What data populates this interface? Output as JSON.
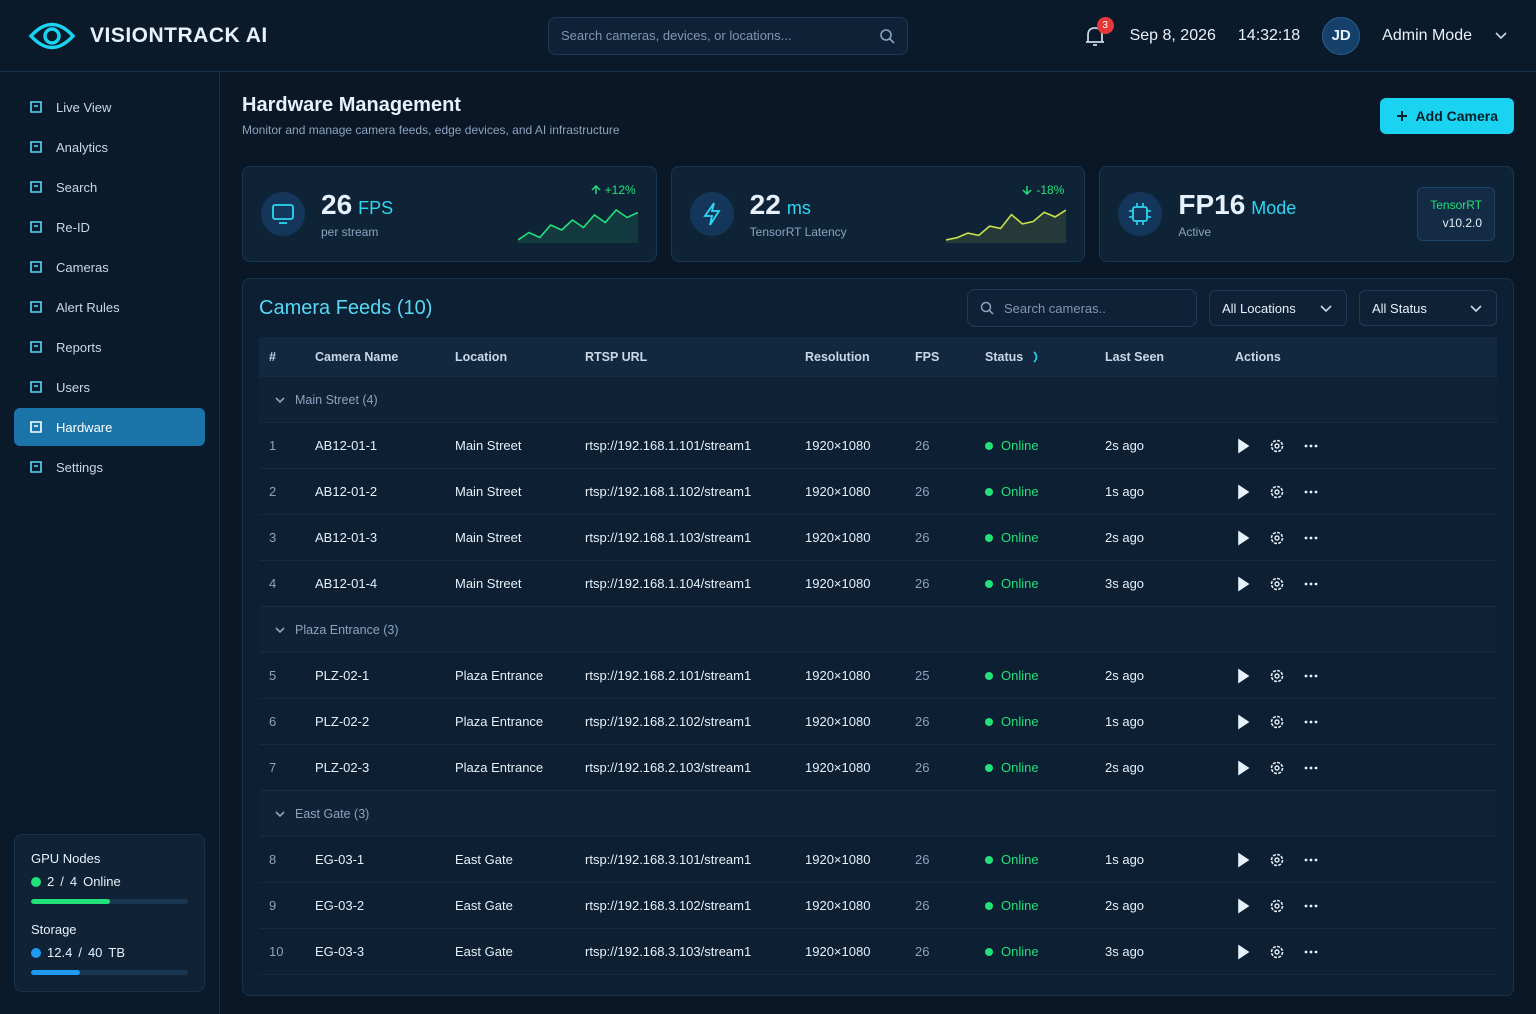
{
  "app": {
    "name": "VISIONTRACK AI",
    "search_placeholder": "Search cameras, devices, or locations...",
    "notification_count": 3,
    "date": "Sep 8, 2026",
    "time": "14:32:18",
    "user_initials": "JD",
    "user_mode": "Admin Mode"
  },
  "nav": {
    "items": [
      "Live View",
      "Analytics",
      "Search",
      "Re-ID",
      "Cameras",
      "Alert Rules",
      "Reports",
      "Users",
      "Hardware",
      "Settings"
    ],
    "active": "Hardware"
  },
  "sidebar_status": {
    "gpu": {
      "label": "GPU Nodes",
      "used": 2,
      "separator": "/",
      "total": 4,
      "status": "Online"
    },
    "storage": {
      "label": "Storage",
      "used": 12.4,
      "separator": "/",
      "total": 40,
      "unit": "TB"
    }
  },
  "header": {
    "title": "Hardware Management",
    "subtitle": "Monitor and manage camera feeds, edge devices, and AI infrastructure",
    "button": "Add Camera"
  },
  "stats": [
    {
      "value": 26,
      "unit": "FPS",
      "label": "per stream",
      "change": "+12%",
      "color": "#22e07a",
      "trend": [
        30,
        33,
        31,
        36,
        34,
        38,
        35,
        40,
        37,
        42,
        39,
        41
      ]
    },
    {
      "value": 22,
      "unit": "ms",
      "label": "TensorRT Latency",
      "change": "-18%",
      "color": "#c9e04a",
      "trend": [
        30,
        31,
        33,
        32,
        36,
        35,
        41,
        37,
        38,
        42,
        40,
        43
      ]
    },
    {
      "value": "FP16",
      "unit": "Mode",
      "label": "Active",
      "badge_name": "TensorRT",
      "badge_version": "v10.2.0"
    }
  ],
  "table": {
    "title": "Camera Feeds (10)",
    "search_placeholder": "Search cameras..",
    "filters": [
      "All Locations",
      "All Status"
    ],
    "columns": [
      "#",
      "Camera Name",
      "Location",
      "RTSP URL",
      "Resolution",
      "FPS",
      "Status",
      "Last Seen",
      "Actions"
    ],
    "groups": [
      {
        "name": "Main Street (4)",
        "rows": [
          [
            1,
            "AB12-01-1",
            "Main Street",
            "rtsp://192.168.1.101/stream1",
            "1920×1080",
            26,
            "Online",
            "2s ago"
          ],
          [
            2,
            "AB12-01-2",
            "Main Street",
            "rtsp://192.168.1.102/stream1",
            "1920×1080",
            26,
            "Online",
            "1s ago"
          ],
          [
            3,
            "AB12-01-3",
            "Main Street",
            "rtsp://192.168.1.103/stream1",
            "1920×1080",
            26,
            "Online",
            "2s ago"
          ],
          [
            4,
            "AB12-01-4",
            "Main Street",
            "rtsp://192.168.1.104/stream1",
            "1920×1080",
            26,
            "Online",
            "3s ago"
          ]
        ]
      },
      {
        "name": "Plaza Entrance (3)",
        "rows": [
          [
            5,
            "PLZ-02-1",
            "Plaza Entrance",
            "rtsp://192.168.2.101/stream1",
            "1920×1080",
            25,
            "Online",
            "2s ago"
          ],
          [
            6,
            "PLZ-02-2",
            "Plaza Entrance",
            "rtsp://192.168.2.102/stream1",
            "1920×1080",
            26,
            "Online",
            "1s ago"
          ],
          [
            7,
            "PLZ-02-3",
            "Plaza Entrance",
            "rtsp://192.168.2.103/stream1",
            "1920×1080",
            26,
            "Online",
            "2s ago"
          ]
        ]
      },
      {
        "name": "East Gate (3)",
        "rows": [
          [
            8,
            "EG-03-1",
            "East Gate",
            "rtsp://192.168.3.101/stream1",
            "1920×1080",
            26,
            "Online",
            "1s ago"
          ],
          [
            9,
            "EG-03-2",
            "East Gate",
            "rtsp://192.168.3.102/stream1",
            "1920×1080",
            26,
            "Online",
            "2s ago"
          ],
          [
            10,
            "EG-03-3",
            "East Gate",
            "rtsp://192.168.3.103/stream1",
            "1920×1080",
            26,
            "Online",
            "3s ago"
          ]
        ]
      }
    ]
  }
}
